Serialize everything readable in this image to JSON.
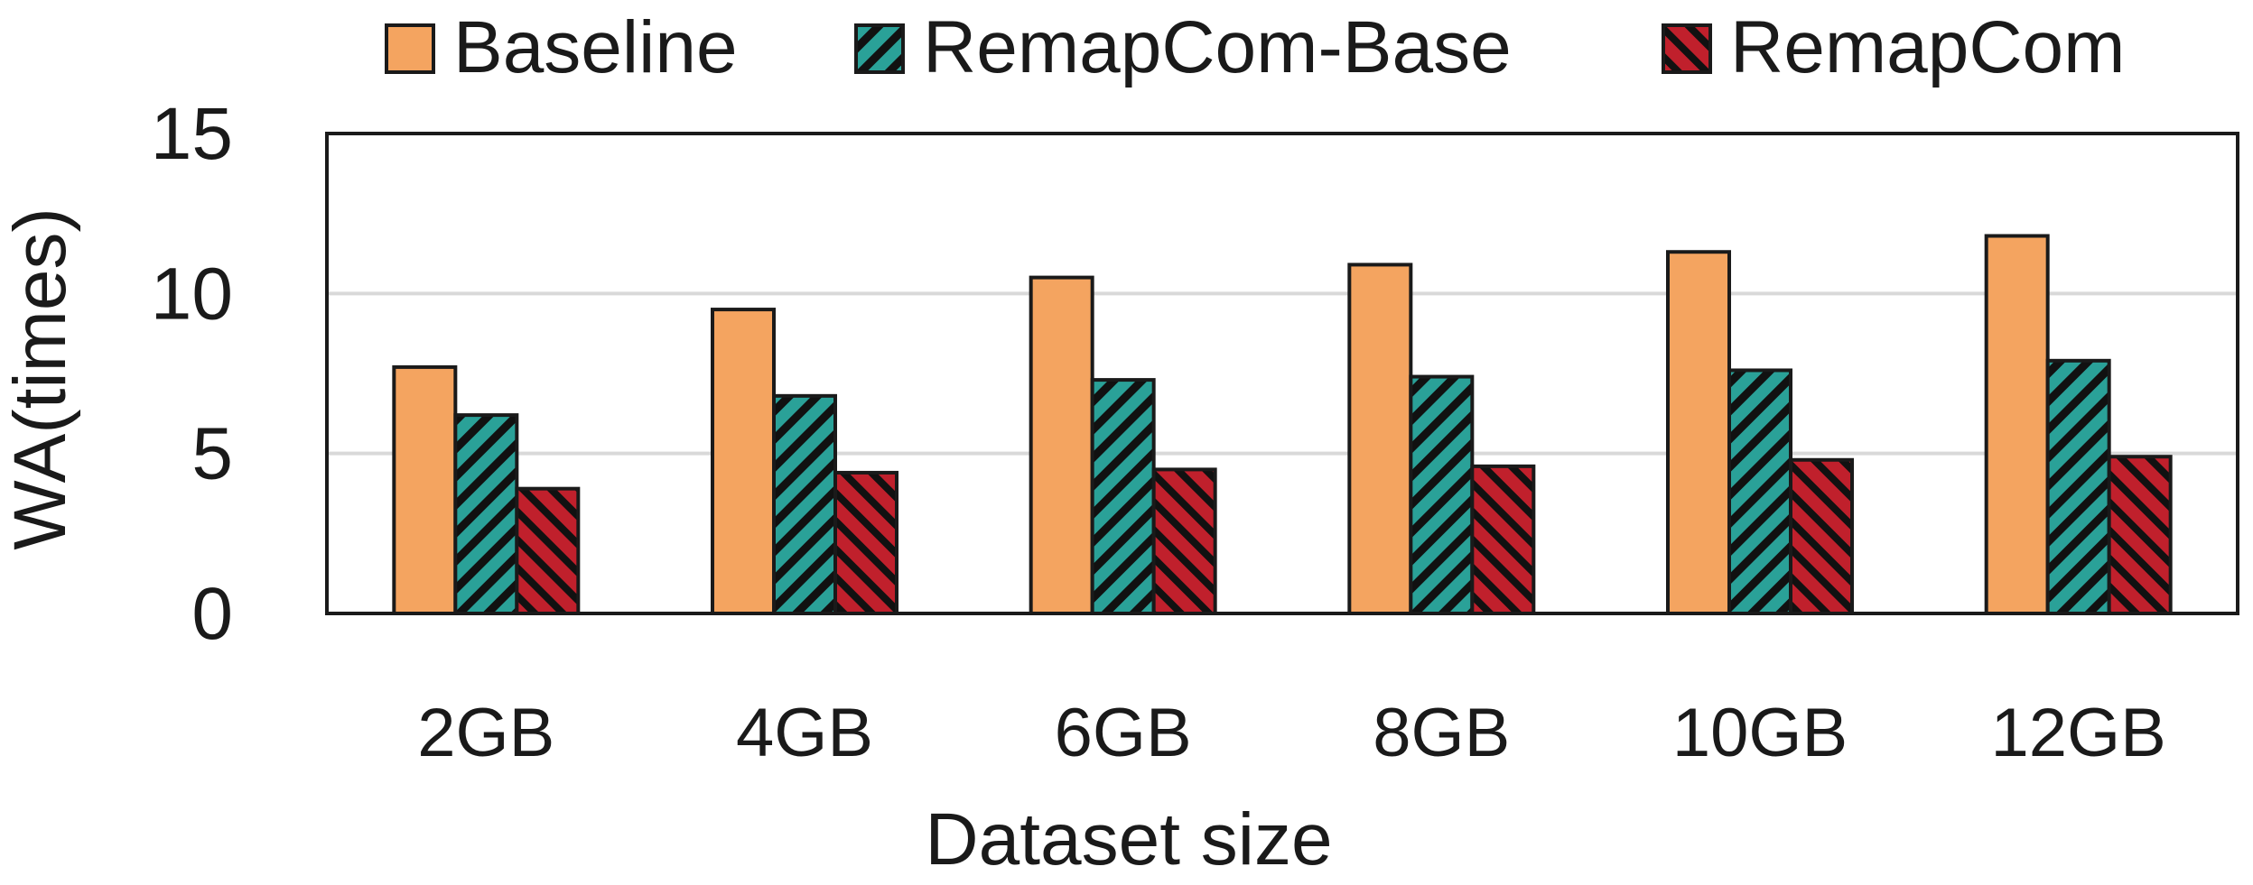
{
  "chart_data": {
    "type": "bar",
    "title": "",
    "xlabel": "Dataset size",
    "ylabel": "WA(times)",
    "categories": [
      "2GB",
      "4GB",
      "6GB",
      "8GB",
      "10GB",
      "12GB"
    ],
    "ylim": [
      0,
      15
    ],
    "yticks": [
      "0",
      "5",
      "10",
      "15"
    ],
    "grid": true,
    "legend_position": "top",
    "series": [
      {
        "name": "Baseline",
        "values": [
          7.7,
          9.5,
          10.5,
          10.9,
          11.3,
          11.8
        ],
        "color": "#f4a460",
        "pattern": "solid"
      },
      {
        "name": "RemapCom-Base",
        "values": [
          6.2,
          6.8,
          7.3,
          7.4,
          7.6,
          7.9
        ],
        "color": "#2aa198",
        "pattern": "diagonal-hatch"
      },
      {
        "name": "RemapCom",
        "values": [
          3.9,
          4.4,
          4.5,
          4.6,
          4.8,
          4.9
        ],
        "color": "#c0202c",
        "pattern": "diagonal-hatch-dense"
      }
    ]
  }
}
